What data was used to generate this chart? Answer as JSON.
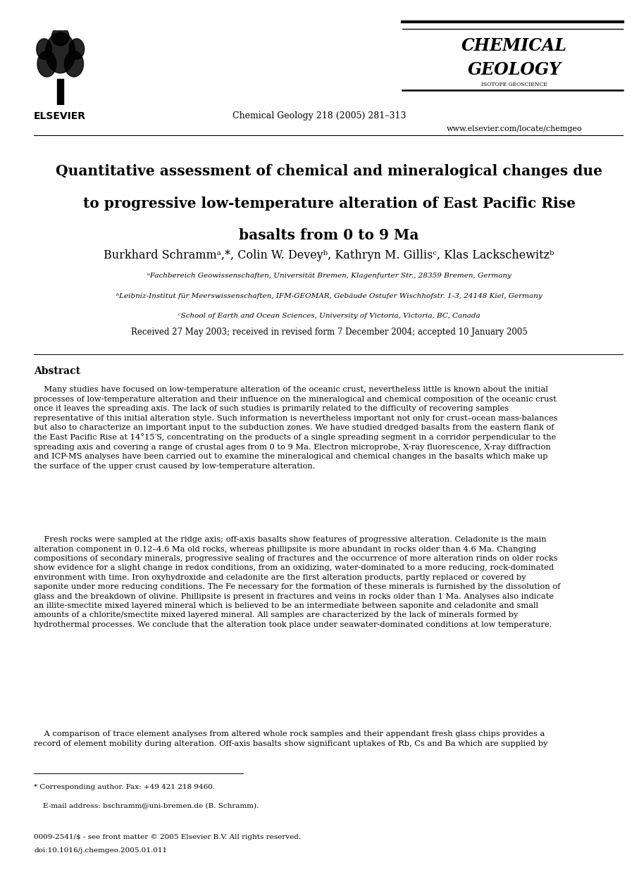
{
  "title_line1": "Quantitative assessment of chemical and mineralogical changes due",
  "title_line2": "to progressive low-temperature alteration of East Pacific Rise",
  "title_line3": "basalts from 0 to 9 Ma",
  "journal_name_line1": "CHEMICAL",
  "journal_name_line2": "GEOLOGY",
  "journal_subtitle": "ISOTOPE GEOSCIENCE",
  "journal_info": "Chemical Geology 218 (2005) 281–313",
  "journal_url": "www.elsevier.com/locate/chemgeo",
  "elsevier_label": "ELSEVIER",
  "affil_a": "ᵃFachbereich Geowissenschaften, Universität Bremen, Klagenfurter Str., 28359 Bremen, Germany",
  "affil_b": "ᵇLeibniz-Institut für Meerswissenschaften, IFM-GEOMAR, Gebäude Ostufer Wischhofstr. 1-3, 24148 Kiel, Germany",
  "affil_c": "ᶜSchool of Earth and Ocean Sciences, University of Victoria, Victoria, BC, Canada",
  "received": "Received 27 May 2003; received in revised form 7 December 2004; accepted 10 January 2005",
  "abstract_title": "Abstract",
  "footnote_star": "* Corresponding author. Fax: +49 421 218 9460.",
  "footnote_email": "    E-mail address: bschramm@uni-bremen.de (B. Schramm).",
  "footnote_issn": "0009-2541/$ - see front matter © 2005 Elsevier B.V. All rights reserved.",
  "footnote_doi": "doi:10.1016/j.chemgeo.2005.01.011",
  "bg_color": "#ffffff",
  "text_color": "#000000"
}
